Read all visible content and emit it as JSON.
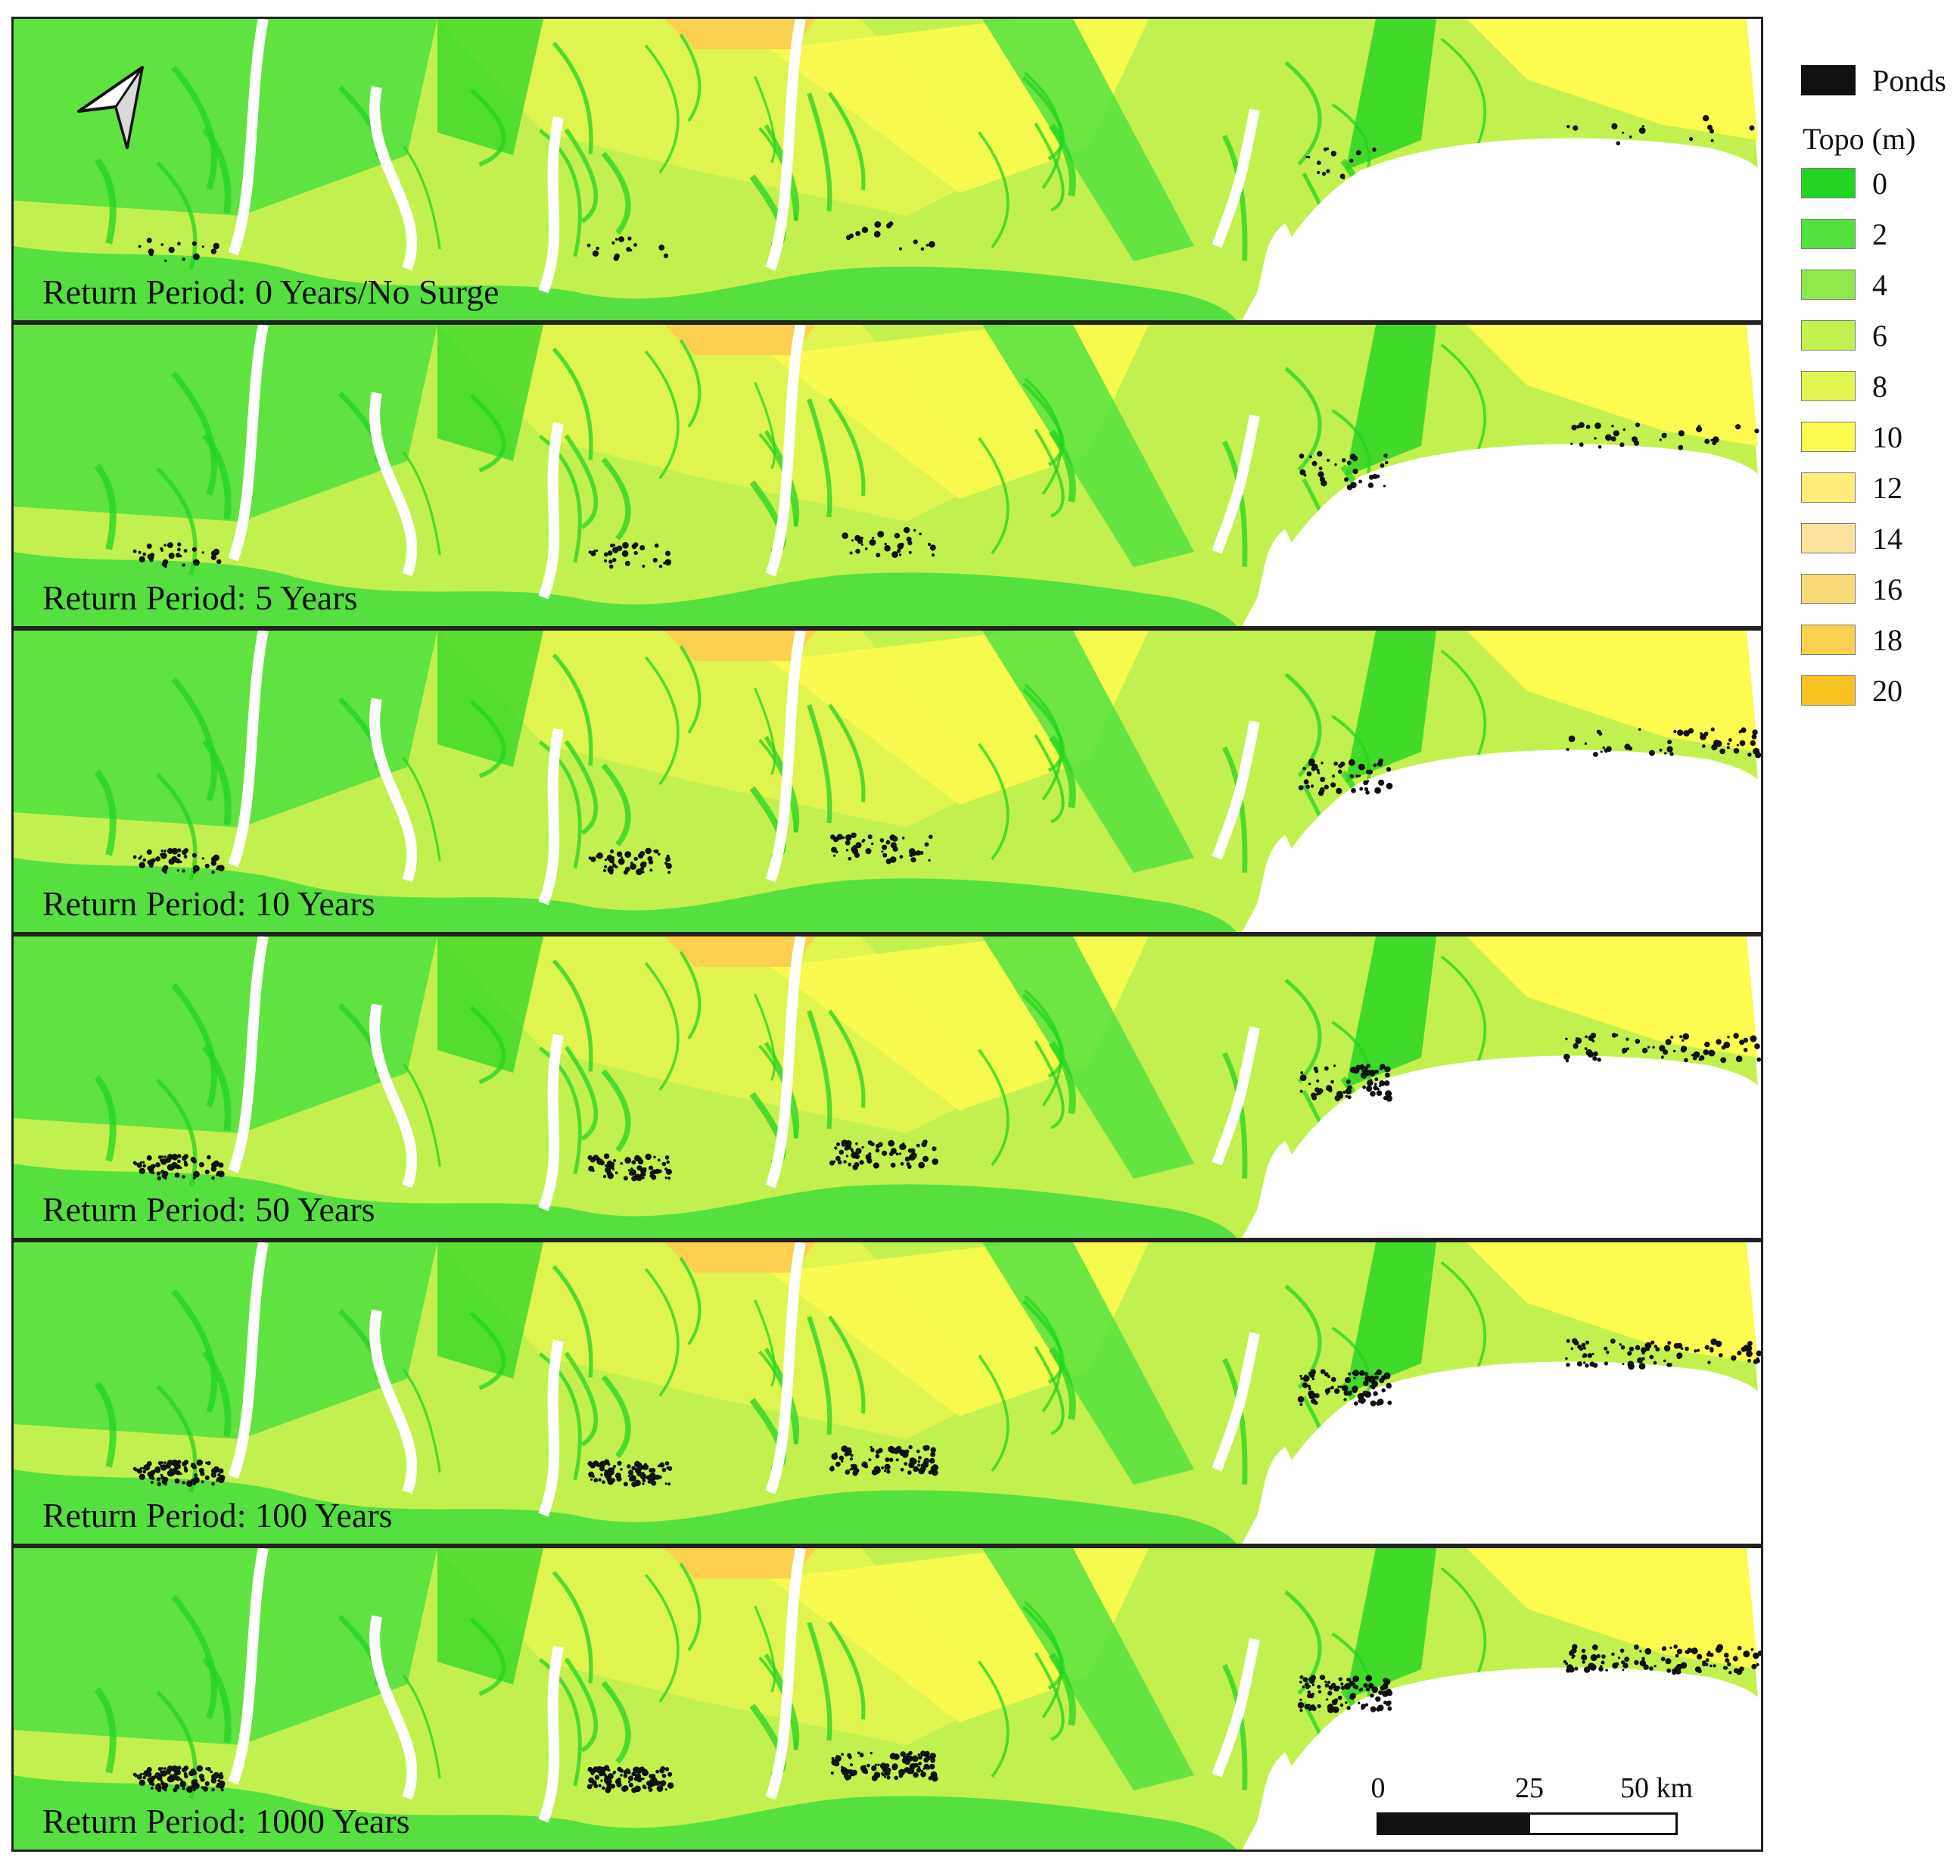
{
  "panels": [
    {
      "label": "Return Period: 0 Years/No Surge",
      "pond_level": 0
    },
    {
      "label": "Return Period: 5 Years",
      "pond_level": 1
    },
    {
      "label": "Return Period: 10 Years",
      "pond_level": 2
    },
    {
      "label": "Return Period: 50 Years",
      "pond_level": 3
    },
    {
      "label": "Return Period: 100 Years",
      "pond_level": 4
    },
    {
      "label": "Return Period: 1000 Years",
      "pond_level": 5
    }
  ],
  "legend": {
    "ponds_label": "Ponds",
    "ponds_color": "#111111",
    "topo_title": "Topo (m)",
    "classes": [
      {
        "label": "0",
        "color": "#22d422"
      },
      {
        "label": "2",
        "color": "#55e040"
      },
      {
        "label": "4",
        "color": "#8ee84a"
      },
      {
        "label": "6",
        "color": "#c2f04e"
      },
      {
        "label": "8",
        "color": "#e2f450"
      },
      {
        "label": "10",
        "color": "#fbfb50"
      },
      {
        "label": "12",
        "color": "#fbed78"
      },
      {
        "label": "14",
        "color": "#f9e39c"
      },
      {
        "label": "16",
        "color": "#f7d978"
      },
      {
        "label": "18",
        "color": "#fad04e"
      },
      {
        "label": "20",
        "color": "#f8c322"
      }
    ]
  },
  "scale_bar": {
    "labels": [
      "0",
      "25",
      "50 km"
    ]
  },
  "north_arrow": {
    "icon": "north-arrow-icon"
  }
}
